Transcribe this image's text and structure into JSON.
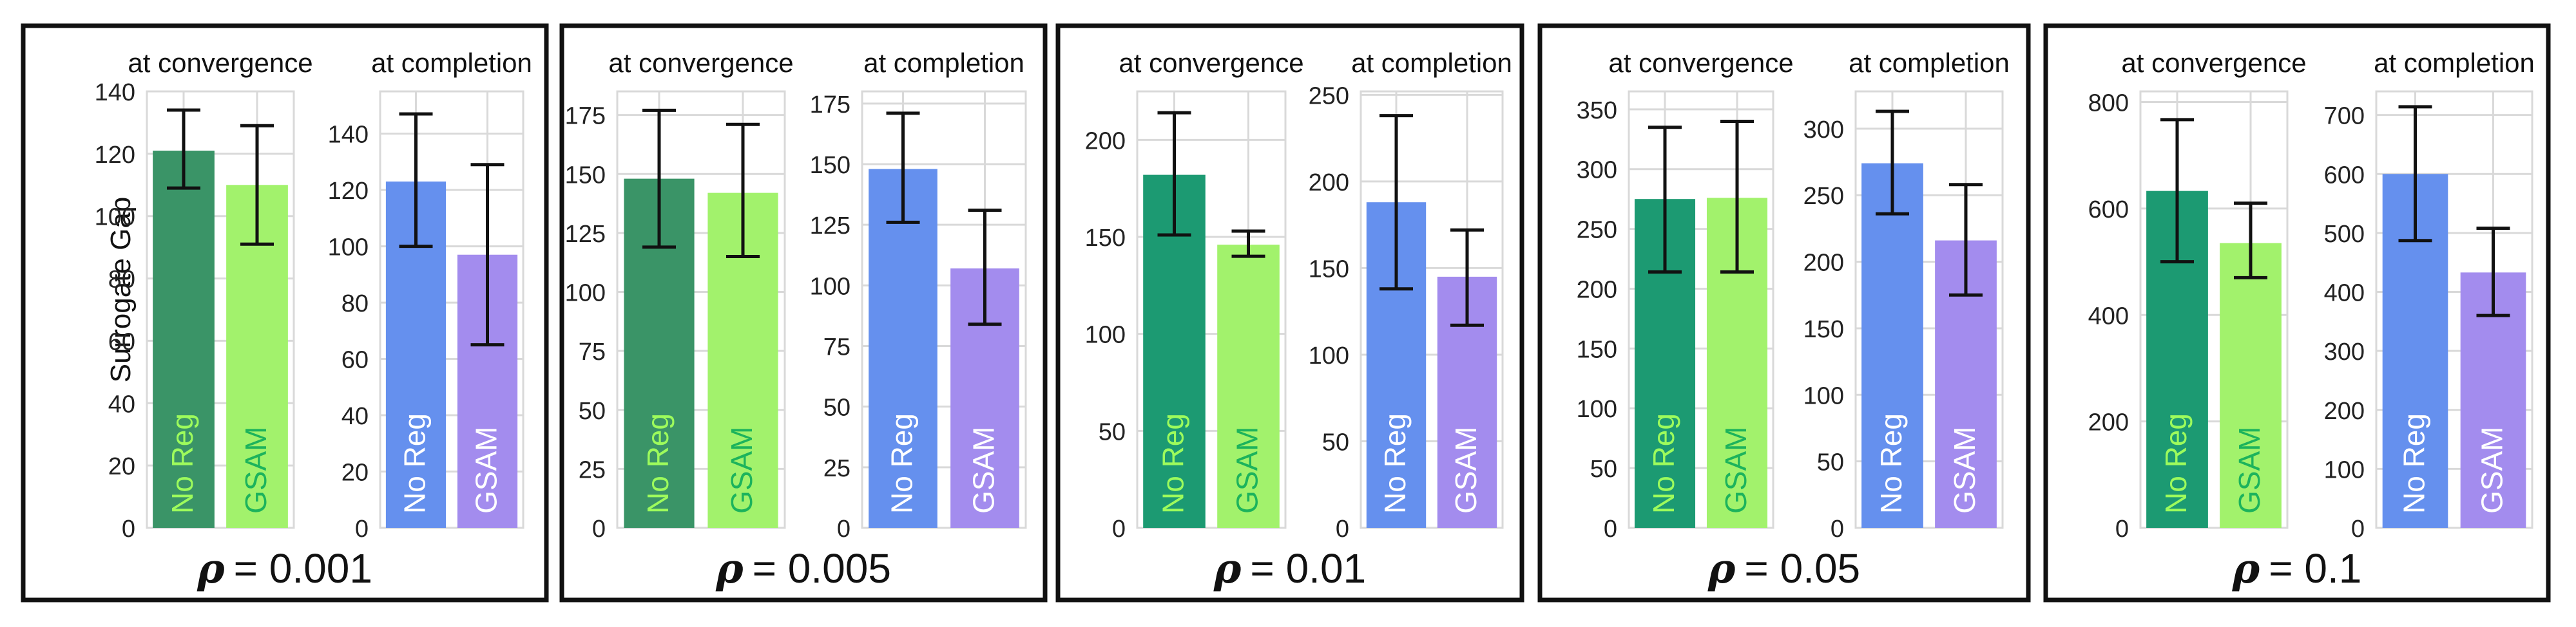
{
  "y_axis_label": "Surrogate Gap",
  "panel_left_title": "at convergence",
  "panel_right_title": "at completion",
  "colors": {
    "conv_noreg": "#3a9467",
    "conv_gsam": "#a2f26c",
    "conv_noreg_dark": "#1c9a72",
    "comp_noreg": "#6590ee",
    "comp_gsam": "#a38cee",
    "conv_label_noreg": "#9dfb5c",
    "conv_label_gsam": "#1cb35c",
    "comp_label": "#ffffff",
    "grid": "#d9d9d9",
    "frame": "#111111"
  },
  "chart_data": [
    {
      "rho_symbol": "ρ",
      "rho_label": "= 0.001",
      "convergence": {
        "type": "bar",
        "title": "at convergence",
        "categories": [
          "No Reg",
          "GSAM"
        ],
        "values": [
          121,
          110
        ],
        "err_low": [
          109,
          91
        ],
        "err_high": [
          134,
          129
        ],
        "ylim": [
          0,
          140
        ],
        "yticks": [
          0,
          20,
          40,
          60,
          80,
          100,
          120,
          140
        ]
      },
      "completion": {
        "type": "bar",
        "title": "at completion",
        "categories": [
          "No Reg",
          "GSAM"
        ],
        "values": [
          123,
          97
        ],
        "err_low": [
          100,
          65
        ],
        "err_high": [
          147,
          129
        ],
        "ylim": [
          0,
          155
        ],
        "yticks": [
          0,
          20,
          40,
          60,
          80,
          100,
          120,
          140
        ]
      }
    },
    {
      "rho_symbol": "ρ",
      "rho_label": "= 0.005",
      "convergence": {
        "type": "bar",
        "title": "at convergence",
        "categories": [
          "No Reg",
          "GSAM"
        ],
        "values": [
          148,
          142
        ],
        "err_low": [
          119,
          115
        ],
        "err_high": [
          177,
          171
        ],
        "ylim": [
          0,
          185
        ],
        "yticks": [
          0,
          25,
          50,
          75,
          100,
          125,
          150,
          175
        ]
      },
      "completion": {
        "type": "bar",
        "title": "at completion",
        "categories": [
          "No Reg",
          "GSAM"
        ],
        "values": [
          148,
          107
        ],
        "err_low": [
          126,
          84
        ],
        "err_high": [
          171,
          131
        ],
        "ylim": [
          0,
          180
        ],
        "yticks": [
          0,
          25,
          50,
          75,
          100,
          125,
          150,
          175
        ]
      }
    },
    {
      "rho_symbol": "ρ",
      "rho_label": "= 0.01",
      "convergence": {
        "type": "bar",
        "title": "at convergence",
        "categories": [
          "No Reg",
          "GSAM"
        ],
        "values": [
          182,
          146
        ],
        "err_low": [
          151,
          140
        ],
        "err_high": [
          214,
          153
        ],
        "ylim": [
          0,
          225
        ],
        "yticks": [
          0,
          50,
          100,
          150,
          200
        ]
      },
      "completion": {
        "type": "bar",
        "title": "at completion",
        "categories": [
          "No Reg",
          "GSAM"
        ],
        "values": [
          188,
          145
        ],
        "err_low": [
          138,
          117
        ],
        "err_high": [
          238,
          172
        ],
        "ylim": [
          0,
          252
        ],
        "yticks": [
          0,
          50,
          100,
          150,
          200,
          250
        ]
      }
    },
    {
      "rho_symbol": "ρ",
      "rho_label": "= 0.05",
      "convergence": {
        "type": "bar",
        "title": "at convergence",
        "categories": [
          "No Reg",
          "GSAM"
        ],
        "values": [
          275,
          276
        ],
        "err_low": [
          214,
          214
        ],
        "err_high": [
          335,
          340
        ],
        "ylim": [
          0,
          365
        ],
        "yticks": [
          0,
          50,
          100,
          150,
          200,
          250,
          300,
          350
        ]
      },
      "completion": {
        "type": "bar",
        "title": "at completion",
        "categories": [
          "No Reg",
          "GSAM"
        ],
        "values": [
          274,
          216
        ],
        "err_low": [
          236,
          175
        ],
        "err_high": [
          313,
          258
        ],
        "ylim": [
          0,
          328
        ],
        "yticks": [
          0,
          50,
          100,
          150,
          200,
          250,
          300
        ]
      }
    },
    {
      "rho_symbol": "ρ",
      "rho_label": "= 0.1",
      "convergence": {
        "type": "bar",
        "title": "at convergence",
        "categories": [
          "No Reg",
          "GSAM"
        ],
        "values": [
          633,
          535
        ],
        "err_low": [
          500,
          470
        ],
        "err_high": [
          767,
          610
        ],
        "ylim": [
          0,
          820
        ],
        "yticks": [
          0,
          200,
          400,
          600,
          800
        ]
      },
      "completion": {
        "type": "bar",
        "title": "at completion",
        "categories": [
          "No Reg",
          "GSAM"
        ],
        "values": [
          600,
          433
        ],
        "err_low": [
          487,
          360
        ],
        "err_high": [
          714,
          508
        ],
        "ylim": [
          0,
          740
        ],
        "yticks": [
          0,
          100,
          200,
          300,
          400,
          500,
          600,
          700
        ]
      }
    }
  ]
}
